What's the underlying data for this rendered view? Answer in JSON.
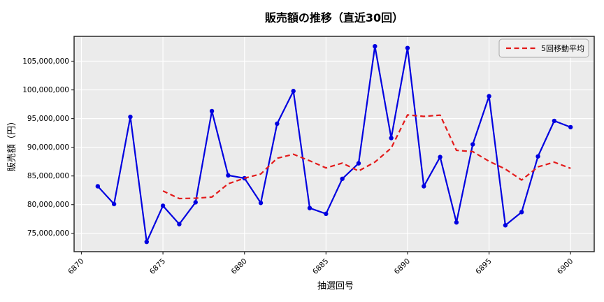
{
  "figure": {
    "title": "販売額の推移（直近30回）"
  },
  "chart_data": {
    "type": "line",
    "title": "販売額の推移（直近30回）",
    "xlabel": "抽選回号",
    "ylabel": "販売額（円）",
    "x": [
      6871,
      6872,
      6873,
      6874,
      6875,
      6876,
      6877,
      6878,
      6879,
      6880,
      6881,
      6882,
      6883,
      6884,
      6885,
      6886,
      6887,
      6888,
      6889,
      6890,
      6891,
      6892,
      6893,
      6894,
      6895,
      6896,
      6897,
      6898,
      6899,
      6900
    ],
    "series": [
      {
        "role": "sales",
        "color": "#0000e0",
        "style": "solid",
        "marker": "circle",
        "values": [
          83200000,
          80100000,
          95300000,
          73500000,
          79800000,
          76600000,
          80400000,
          96300000,
          85100000,
          84600000,
          80300000,
          94100000,
          99800000,
          79400000,
          78400000,
          84500000,
          87200000,
          107600000,
          91600000,
          107300000,
          83200000,
          88300000,
          76900000,
          90500000,
          98900000,
          76400000,
          78700000,
          88400000,
          94600000,
          93500000
        ]
      },
      {
        "role": "moving-average",
        "name": "5回移動平均",
        "color": "#e31a1a",
        "style": "dashed",
        "marker": "none",
        "values": [
          null,
          null,
          null,
          null,
          82380000,
          81060000,
          81120000,
          81320000,
          83640000,
          84600000,
          85340000,
          88080000,
          88780000,
          87640000,
          86400000,
          87240000,
          85860000,
          87420000,
          89860000,
          95640000,
          95380000,
          95600000,
          89460000,
          89240000,
          87560000,
          86200000,
          84280000,
          86580000,
          87400000,
          86320000
        ]
      }
    ],
    "xticks": [
      6870,
      6875,
      6880,
      6885,
      6890,
      6895,
      6900
    ],
    "xtick_labels": [
      "6870",
      "6875",
      "6880",
      "6885",
      "6890",
      "6895",
      "6900"
    ],
    "yticks": [
      75000000,
      80000000,
      85000000,
      90000000,
      95000000,
      100000000,
      105000000
    ],
    "ytick_labels": [
      "75,000,000",
      "80,000,000",
      "85,000,000",
      "90,000,000",
      "95,000,000",
      "100,000,000",
      "105,000,000"
    ],
    "xlim": [
      6869.55,
      6901.45
    ],
    "ylim": [
      71800000,
      109330000
    ],
    "grid": true,
    "plot_bg": "#ebebeb",
    "grid_color": "#ffffff",
    "spine_color": "#2a2a2a",
    "legend": {
      "position": "upper right",
      "entries": [
        {
          "label": "5回移動平均",
          "color": "#e31a1a",
          "style": "dashed"
        }
      ]
    }
  }
}
